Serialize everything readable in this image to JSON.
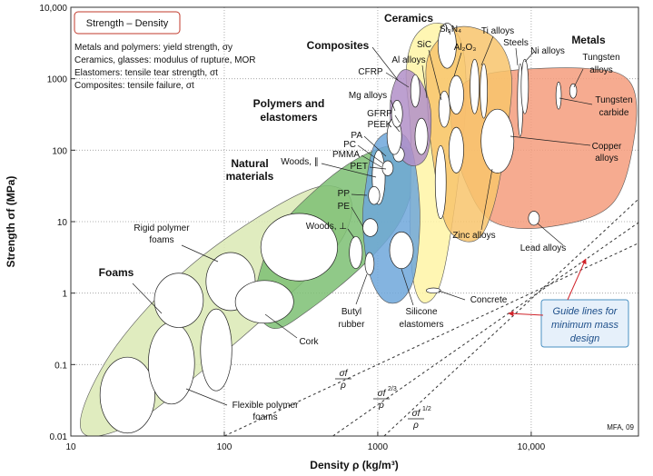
{
  "chart_data": {
    "type": "ashby",
    "xlabel": "Density ρ (kg/m³)",
    "ylabel": "Strength σf (MPa)",
    "log_x": true,
    "log_y": true,
    "grid": true,
    "xlim": [
      10,
      50000
    ],
    "ylim": [
      0.01,
      10000
    ],
    "xticks": [
      10,
      100,
      1000,
      {
        "value": 10000,
        "label": "10,000"
      }
    ],
    "yticks": [
      0.01,
      0.1,
      1,
      10,
      100,
      1000,
      {
        "value": 10000,
        "label": "10,000"
      }
    ],
    "legend_box": {
      "title": "Strength – Density",
      "notes": [
        "Metals and polymers: yield strength, σy",
        "Ceramics, glasses: modulus of rupture, MOR",
        "Elastomers: tensile tear strength, σt",
        "Composites: tensile failure, σt"
      ]
    },
    "families": [
      {
        "color": "#dbe9b4",
        "x": [
          12,
          20,
          53,
          160,
          420,
          670,
          550,
          210,
          70,
          27,
          13
        ],
        "y": [
          0.024,
          0.19,
          1.9,
          11,
          31,
          20,
          4.7,
          0.6,
          0.078,
          0.016,
          0.01
        ]
      },
      {
        "color": "#7dbf73",
        "x": [
          159,
          210,
          416,
          826,
          1430,
          1750,
          1430,
          826,
          363,
          210
        ],
        "y": [
          0.8,
          6.2,
          31,
          87,
          116,
          56,
          11,
          2.6,
          0.6,
          0.32
        ]
      },
      {
        "color": "#fff5a6",
        "x": [
          1750,
          2470,
          3480,
          3730,
          3030,
          2470,
          1880,
          1640,
          1640,
          1530
        ],
        "y": [
          3900,
          6000,
          3360,
          375,
          8.4,
          1.1,
          0.8,
          3.5,
          156,
          1210
        ]
      },
      {
        "color": "#f49c7c",
        "x": [
          3250,
          5620,
          22100,
          44000,
          47100,
          33400,
          12800,
          5620,
          3730,
          3030
        ],
        "y": [
          673,
          1210,
          1400,
          900,
          156,
          17.4,
          8.4,
          10,
          36,
          209
        ]
      },
      {
        "color": "#f8c46c",
        "x": [
          2150,
          3250,
          5620,
          7400,
          6900,
          5620,
          4280,
          2830,
          2310,
          2100
        ],
        "y": [
          2170,
          5220,
          3900,
          1210,
          156,
          15,
          5.4,
          8.4,
          65,
          500
        ]
      },
      {
        "color": "#6fa7da",
        "x": [
          826,
          946,
          1245,
          1640,
          1880,
          1750,
          1430,
          1090,
          880,
          800
        ],
        "y": [
          27,
          116,
          181,
          116,
          15,
          1.9,
          0.8,
          0.8,
          1.9,
          8.4
        ]
      },
      {
        "color": "#b28fc8",
        "x": [
          1210,
          1430,
          1830,
          2210,
          2100,
          1640,
          1280
        ],
        "y": [
          500,
          1280,
          1040,
          375,
          87,
          61,
          116
        ]
      }
    ],
    "materials": [
      {
        "x": [
          15.5,
          35.3
        ],
        "y": [
          0.011,
          0.127
        ]
      },
      {
        "x": [
          32,
          64
        ],
        "y": [
          0.028,
          0.39
        ]
      },
      {
        "x": [
          35,
          73
        ],
        "y": [
          0.33,
          1.9
        ]
      },
      {
        "x": [
          70,
          112
        ],
        "y": [
          0.043,
          0.6
        ]
      },
      {
        "x": [
          76,
          159
        ],
        "y": [
          0.57,
          3.7
        ]
      },
      {
        "x": [
          118,
          283
        ],
        "y": [
          0.38,
          1.5
        ]
      },
      {
        "x": [
          173,
          547
        ],
        "y": [
          1.48,
          13
        ]
      },
      {
        "x": [
          653,
          793
        ],
        "y": [
          2.2,
          6.2
        ]
      },
      {
        "x": [
          920,
          1117
        ],
        "y": [
          17.4,
          100
        ]
      },
      {
        "x": [
          1195,
          1705
        ],
        "y": [
          2.2,
          7.2
        ]
      },
      {
        "x": [
          826,
          946
        ],
        "y": [
          1.8,
          3.7
        ]
      },
      {
        "x": [
          800,
          1000
        ],
        "y": [
          6.2,
          11
        ]
      },
      {
        "x": [
          870,
          1030
        ],
        "y": [
          17.4,
          31
        ]
      },
      {
        "x": [
          1070,
          1260
        ],
        "y": [
          44,
          71
        ]
      },
      {
        "x": [
          1260,
          1490
        ],
        "y": [
          69,
          110
        ]
      },
      {
        "x": [
          1150,
          1430
        ],
        "y": [
          87,
          280
        ]
      },
      {
        "x": [
          1640,
          1880
        ],
        "y": [
          400,
          1140
        ]
      },
      {
        "x": [
          1750,
          2120
        ],
        "y": [
          87,
          280
        ]
      },
      {
        "x": [
          2070,
          2570
        ],
        "y": [
          1,
          1.18
        ]
      },
      {
        "x": [
          2370,
          2790
        ],
        "y": [
          11,
          116
        ]
      },
      {
        "x": [
          2470,
          3250
        ],
        "y": [
          1400,
          6000
        ]
      },
      {
        "x": [
          2910,
          3630
        ],
        "y": [
          320,
          1110
        ]
      },
      {
        "x": [
          2500,
          2950
        ],
        "y": [
          209,
          673
        ]
      },
      {
        "x": [
          4000,
          4580
        ],
        "y": [
          324,
          1870
        ]
      },
      {
        "x": [
          4650,
          5180
        ],
        "y": [
          280,
          1620
        ]
      },
      {
        "x": [
          8140,
          8840
        ],
        "y": [
          156,
          1620
        ]
      },
      {
        "x": [
          8600,
          9590
        ],
        "y": [
          324,
          1870
        ]
      },
      {
        "x": [
          4710,
          7710
        ],
        "y": [
          48,
          375
        ]
      },
      {
        "x": [
          2910,
          3630
        ],
        "y": [
          48,
          209
        ]
      },
      {
        "x": [
          9590,
          11300
        ],
        "y": [
          8.9,
          14
        ]
      },
      {
        "x": [
          17800,
          19800
        ],
        "y": [
          533,
          850
        ]
      },
      {
        "x": [
          14500,
          15700
        ],
        "y": [
          375,
          900
        ]
      },
      {
        "x": [
          1230,
          1450
        ],
        "y": [
          209,
          500
        ]
      }
    ],
    "guide_lines": [
      {
        "x": [
          100,
          50000
        ],
        "y": [
          0.01,
          5
        ],
        "label": {
          "numerator": "σf",
          "denominator": "ρ"
        }
      },
      {
        "x": [
          510,
          50000
        ],
        "y": [
          0.01,
          9.7
        ],
        "label": {
          "numerator": "σf",
          "power": "2/3",
          "denominator": "ρ"
        }
      },
      {
        "x": [
          1100,
          50000
        ],
        "y": [
          0.01,
          20.7
        ],
        "label": {
          "numerator": "σf",
          "power": "1/2",
          "denominator": "ρ"
        }
      }
    ],
    "annotations": [
      {
        "text": [
          "Foams"
        ]
      },
      {
        "text": [
          "Rigid polymer",
          "foams"
        ]
      },
      {
        "text": [
          "Natural",
          "materials"
        ]
      },
      {
        "text": [
          "Woods, ⊥"
        ]
      },
      {
        "text": [
          "Woods, ∥"
        ]
      },
      {
        "text": [
          "Polymers and",
          "elastomers"
        ]
      },
      {
        "text": [
          "Composites"
        ]
      },
      {
        "text": [
          "Ceramics"
        ]
      },
      {
        "text": [
          "Metals"
        ]
      },
      {
        "text": [
          "Si₃N₄"
        ]
      },
      {
        "text": [
          "SiC"
        ]
      },
      {
        "text": [
          "Al₂O₃"
        ]
      },
      {
        "text": [
          "Al alloys"
        ]
      },
      {
        "text": [
          "Ti alloys"
        ]
      },
      {
        "text": [
          "Steels"
        ]
      },
      {
        "text": [
          "Ni alloys"
        ]
      },
      {
        "text": [
          "Tungsten",
          "alloys"
        ]
      },
      {
        "text": [
          "Tungsten",
          "carbide"
        ]
      },
      {
        "text": [
          "Copper",
          "alloys"
        ]
      },
      {
        "text": [
          "Zinc alloys"
        ]
      },
      {
        "text": [
          "Lead alloys"
        ]
      },
      {
        "text": [
          "Concrete"
        ]
      },
      {
        "text": [
          "Silicone",
          "elastomers"
        ]
      },
      {
        "text": [
          "Butyl",
          "rubber"
        ]
      },
      {
        "text": [
          "Cork"
        ]
      },
      {
        "text": [
          "Flexible polymer",
          "foams"
        ]
      },
      {
        "text": [
          "CFRP"
        ]
      },
      {
        "text": [
          "Mg alloys"
        ]
      },
      {
        "text": [
          "GFRP"
        ]
      },
      {
        "text": [
          "PEEK"
        ]
      },
      {
        "text": [
          "PA"
        ]
      },
      {
        "text": [
          "PC"
        ]
      },
      {
        "text": [
          "PMMA"
        ]
      },
      {
        "text": [
          "PET"
        ]
      },
      {
        "text": [
          "PP"
        ]
      },
      {
        "text": [
          "PE"
        ]
      },
      {
        "text": [
          "Guide lines for",
          "minimum mass",
          "design"
        ]
      },
      {
        "text": [
          "MFA, 09"
        ]
      }
    ]
  }
}
